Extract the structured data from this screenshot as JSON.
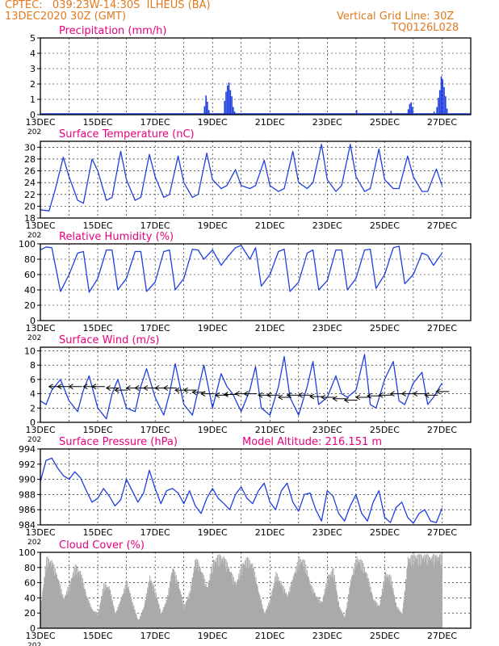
{
  "header": {
    "line1": "CPTEC:   039:23W-14:30S  ILHEUS (BA)",
    "line2": "13DEC2020 30Z (GMT)",
    "right1": "Vertical Grid Line: 30Z",
    "right2": "TQ0126L028"
  },
  "colors": {
    "header": "#e07a1f",
    "title": "#e6007e",
    "series": "#1f3fe0",
    "cloud": "#aaaaaa",
    "arrow": "#000000"
  },
  "x_labels": [
    "13DEC",
    "15DEC",
    "17DEC",
    "19DEC",
    "21DEC",
    "23DEC",
    "25DEC",
    "27DEC"
  ],
  "year_stub": "202",
  "chart_data": [
    {
      "id": "precip",
      "type": "bar",
      "title": "Precipitation (mm/h)",
      "ylim": [
        0,
        5
      ],
      "yticks": [
        0,
        1,
        2,
        3,
        4,
        5
      ],
      "grid": true,
      "x_unit": "days since 13DEC",
      "bars": [
        [
          5.7,
          0.55
        ],
        [
          5.75,
          1.25
        ],
        [
          5.8,
          0.85
        ],
        [
          5.85,
          0.3
        ],
        [
          6.4,
          0.9
        ],
        [
          6.45,
          1.5
        ],
        [
          6.5,
          1.9
        ],
        [
          6.55,
          2.1
        ],
        [
          6.6,
          1.6
        ],
        [
          6.65,
          1.2
        ],
        [
          6.7,
          0.5
        ],
        [
          6.75,
          0.2
        ],
        [
          7.3,
          0.05
        ],
        [
          8.7,
          0.05
        ],
        [
          11.0,
          0.3
        ],
        [
          12.2,
          0.25
        ],
        [
          12.4,
          0.1
        ],
        [
          12.8,
          0.35
        ],
        [
          12.85,
          0.7
        ],
        [
          12.9,
          0.8
        ],
        [
          12.95,
          0.5
        ],
        [
          13.7,
          0.2
        ],
        [
          13.8,
          0.5
        ],
        [
          13.85,
          1.1
        ],
        [
          13.9,
          1.6
        ],
        [
          13.95,
          2.5
        ],
        [
          14.0,
          2.3
        ],
        [
          14.05,
          1.8
        ],
        [
          14.1,
          1.2
        ],
        [
          14.15,
          0.4
        ]
      ]
    },
    {
      "id": "temp",
      "type": "line",
      "title": "Surface Temperature (nC)",
      "ylim": [
        18,
        31
      ],
      "yticks": [
        18,
        20,
        22,
        24,
        26,
        28,
        30
      ],
      "grid": true,
      "x": [
        0,
        0.3,
        0.5,
        0.8,
        1.0,
        1.3,
        1.5,
        1.8,
        2.0,
        2.3,
        2.5,
        2.8,
        3.0,
        3.3,
        3.5,
        3.8,
        4.0,
        4.3,
        4.5,
        4.8,
        5.0,
        5.3,
        5.5,
        5.8,
        6.0,
        6.3,
        6.5,
        6.8,
        7.0,
        7.3,
        7.5,
        7.8,
        8.0,
        8.3,
        8.5,
        8.8,
        9.0,
        9.3,
        9.5,
        9.8,
        10.0,
        10.3,
        10.5,
        10.8,
        11.0,
        11.3,
        11.5,
        11.8,
        12.0,
        12.3,
        12.5,
        12.8,
        13.0,
        13.3,
        13.5,
        13.8,
        14.0
      ],
      "y": [
        19.4,
        19.2,
        22.5,
        28.3,
        25,
        21,
        20.5,
        28,
        26,
        21,
        21.5,
        29.3,
        24.5,
        21,
        21.5,
        28.8,
        25,
        21.5,
        22,
        28.5,
        24,
        21.5,
        22,
        29,
        24.5,
        23,
        23.5,
        26.2,
        23.5,
        23,
        23.5,
        27.8,
        23.5,
        22.5,
        23,
        29.3,
        24,
        23,
        24,
        30.5,
        24.5,
        22.5,
        23.5,
        30.5,
        25,
        22.5,
        23,
        29.7,
        24.5,
        23,
        23,
        28.5,
        25,
        22.5,
        22.5,
        26.3,
        23.5
      ]
    },
    {
      "id": "rh",
      "type": "line",
      "title": "Relative Humidity (%)",
      "ylim": [
        0,
        100
      ],
      "yticks": [
        0,
        20,
        40,
        60,
        80,
        100
      ],
      "grid": true,
      "x": [
        0,
        0.2,
        0.4,
        0.7,
        1.0,
        1.3,
        1.5,
        1.7,
        2.0,
        2.3,
        2.5,
        2.7,
        3.0,
        3.3,
        3.5,
        3.7,
        4.0,
        4.3,
        4.5,
        4.7,
        5.0,
        5.3,
        5.5,
        5.7,
        6.0,
        6.3,
        6.5,
        6.8,
        7.0,
        7.3,
        7.5,
        7.7,
        8.0,
        8.3,
        8.5,
        8.7,
        9.0,
        9.3,
        9.5,
        9.7,
        10.0,
        10.3,
        10.5,
        10.7,
        11.0,
        11.3,
        11.5,
        11.7,
        12.0,
        12.3,
        12.5,
        12.7,
        13.0,
        13.3,
        13.5,
        13.7,
        14.0
      ],
      "y": [
        92,
        96,
        95,
        38,
        60,
        88,
        90,
        37,
        55,
        92,
        92,
        40,
        55,
        90,
        90,
        38,
        50,
        90,
        92,
        40,
        55,
        93,
        92,
        80,
        92,
        72,
        82,
        95,
        98,
        80,
        95,
        45,
        60,
        90,
        93,
        38,
        50,
        88,
        92,
        40,
        52,
        92,
        92,
        40,
        55,
        92,
        93,
        42,
        60,
        95,
        97,
        48,
        60,
        88,
        85,
        72,
        88
      ]
    },
    {
      "id": "wind",
      "type": "line",
      "title": "Surface Wind (m/s)",
      "ylim": [
        0,
        10.5
      ],
      "yticks": [
        0,
        2,
        4,
        6,
        8,
        10
      ],
      "grid": true,
      "x": [
        0,
        0.2,
        0.4,
        0.7,
        1.0,
        1.3,
        1.5,
        1.7,
        2.0,
        2.3,
        2.5,
        2.7,
        3.0,
        3.3,
        3.5,
        3.7,
        4.0,
        4.3,
        4.5,
        4.7,
        5.0,
        5.3,
        5.5,
        5.7,
        6.0,
        6.3,
        6.5,
        6.7,
        7.0,
        7.3,
        7.5,
        7.7,
        8.0,
        8.3,
        8.5,
        8.7,
        9.0,
        9.3,
        9.5,
        9.7,
        10.0,
        10.3,
        10.5,
        10.7,
        11.0,
        11.3,
        11.5,
        11.7,
        12.0,
        12.3,
        12.5,
        12.7,
        13.0,
        13.3,
        13.5,
        13.7,
        14.0
      ],
      "y": [
        3,
        2.5,
        4.5,
        6,
        3,
        1.5,
        4.5,
        6.5,
        2,
        0.5,
        4,
        6,
        2,
        1.5,
        5,
        7.5,
        3.5,
        1,
        4,
        8.2,
        2.5,
        1,
        4.5,
        8,
        2,
        6.8,
        5,
        4,
        1.5,
        4.5,
        7.8,
        2,
        1,
        5,
        9.2,
        3.5,
        1,
        5,
        8.5,
        2.5,
        3.5,
        6.5,
        4,
        3.5,
        4.5,
        9.5,
        2.5,
        2,
        6,
        8.5,
        3,
        2.5,
        5.5,
        7,
        2.5,
        3.5,
        5.5
      ],
      "arrows": [
        [
          0.3,
          5
        ],
        [
          0.6,
          5
        ],
        [
          1.0,
          5
        ],
        [
          1.5,
          5
        ],
        [
          1.8,
          5
        ],
        [
          2.3,
          4.8
        ],
        [
          2.6,
          4.5
        ],
        [
          3.0,
          4.8
        ],
        [
          3.3,
          4.8
        ],
        [
          3.6,
          4.8
        ],
        [
          4.0,
          4.8
        ],
        [
          4.3,
          4.8
        ],
        [
          4.7,
          4.5
        ],
        [
          5.0,
          4.5
        ],
        [
          5.3,
          4.2
        ],
        [
          5.6,
          4.0
        ],
        [
          6.1,
          3.8
        ],
        [
          6.4,
          3.9
        ],
        [
          6.8,
          4.0
        ],
        [
          7.1,
          4.0
        ],
        [
          7.6,
          3.8
        ],
        [
          7.9,
          3.8
        ],
        [
          8.3,
          3.5
        ],
        [
          8.6,
          3.8
        ],
        [
          9.0,
          3.8
        ],
        [
          9.4,
          3.6
        ],
        [
          9.8,
          3.5
        ],
        [
          10.2,
          3.3
        ],
        [
          10.6,
          3.1
        ],
        [
          11.0,
          3.5
        ],
        [
          11.4,
          3.7
        ],
        [
          11.8,
          3.8
        ],
        [
          12.2,
          4.0
        ],
        [
          12.6,
          4.0
        ],
        [
          13.0,
          4.0
        ],
        [
          13.4,
          3.8
        ],
        [
          13.8,
          4.3
        ]
      ]
    },
    {
      "id": "pres",
      "type": "line",
      "title": "Surface Pressure (hPa)",
      "extra": "Model Altitude: 216.151 m",
      "ylim": [
        984,
        994
      ],
      "yticks": [
        984,
        986,
        988,
        990,
        992,
        994
      ],
      "grid": true,
      "x": [
        0,
        0.2,
        0.4,
        0.6,
        0.8,
        1.0,
        1.2,
        1.4,
        1.6,
        1.8,
        2.0,
        2.2,
        2.4,
        2.6,
        2.8,
        3.0,
        3.2,
        3.4,
        3.6,
        3.8,
        4.0,
        4.2,
        4.4,
        4.6,
        4.8,
        5.0,
        5.2,
        5.4,
        5.6,
        5.8,
        6.0,
        6.2,
        6.4,
        6.6,
        6.8,
        7.0,
        7.2,
        7.4,
        7.6,
        7.8,
        8.0,
        8.2,
        8.4,
        8.6,
        8.8,
        9.0,
        9.2,
        9.4,
        9.6,
        9.8,
        10.0,
        10.2,
        10.4,
        10.6,
        10.8,
        11.0,
        11.2,
        11.4,
        11.6,
        11.8,
        12.0,
        12.2,
        12.4,
        12.6,
        12.8,
        13.0,
        13.2,
        13.4,
        13.6,
        13.8,
        14.0
      ],
      "y": [
        989.7,
        992.5,
        992.8,
        991.5,
        990.5,
        990.0,
        991.0,
        990.2,
        988.5,
        987.0,
        987.5,
        988.8,
        987.8,
        986.5,
        987.3,
        990.0,
        988.5,
        987.0,
        988.2,
        991.2,
        988.8,
        986.8,
        988.5,
        988.8,
        988.2,
        986.8,
        988.5,
        986.5,
        985.5,
        987.5,
        988.8,
        987.5,
        986.8,
        986.0,
        988.0,
        989.0,
        987.5,
        986.8,
        988.5,
        989.5,
        987.0,
        986.0,
        988.5,
        989.5,
        987.0,
        985.8,
        988.0,
        988.2,
        986.0,
        984.5,
        988.5,
        987.8,
        985.5,
        984.5,
        986.5,
        988.0,
        985.5,
        984.5,
        987.0,
        988.5,
        985.0,
        984.3,
        986.3,
        987.0,
        985.0,
        984.2,
        985.5,
        986.0,
        984.5,
        984.3,
        986.2
      ]
    },
    {
      "id": "cloud",
      "type": "area",
      "title": "Cloud Cover (%)",
      "ylim": [
        0,
        100
      ],
      "yticks": [
        0,
        20,
        40,
        60,
        80,
        100
      ],
      "grid": true,
      "x": [
        0,
        0.2,
        0.4,
        0.6,
        0.8,
        1.0,
        1.2,
        1.4,
        1.6,
        1.8,
        2.0,
        2.2,
        2.4,
        2.6,
        2.8,
        3.0,
        3.2,
        3.4,
        3.6,
        3.8,
        4.0,
        4.2,
        4.4,
        4.6,
        4.8,
        5.0,
        5.2,
        5.4,
        5.6,
        5.8,
        6.0,
        6.2,
        6.4,
        6.6,
        6.8,
        7.0,
        7.2,
        7.4,
        7.6,
        7.8,
        8.0,
        8.2,
        8.4,
        8.6,
        8.8,
        9.0,
        9.2,
        9.4,
        9.6,
        9.8,
        10.0,
        10.2,
        10.4,
        10.6,
        10.8,
        11.0,
        11.2,
        11.4,
        11.6,
        11.8,
        12.0,
        12.2,
        12.4,
        12.6,
        12.8,
        13.0,
        13.2,
        13.4,
        13.6,
        13.8,
        14.0
      ],
      "y": [
        30,
        95,
        90,
        70,
        40,
        60,
        85,
        75,
        45,
        25,
        20,
        60,
        55,
        20,
        40,
        65,
        35,
        10,
        30,
        70,
        50,
        20,
        40,
        85,
        60,
        30,
        50,
        95,
        80,
        55,
        90,
        98,
        95,
        80,
        60,
        85,
        95,
        85,
        50,
        20,
        40,
        75,
        60,
        45,
        70,
        95,
        90,
        60,
        45,
        35,
        70,
        80,
        30,
        15,
        65,
        95,
        90,
        70,
        40,
        30,
        75,
        70,
        30,
        20,
        95,
        98,
        98,
        98,
        98,
        98,
        98
      ]
    }
  ]
}
